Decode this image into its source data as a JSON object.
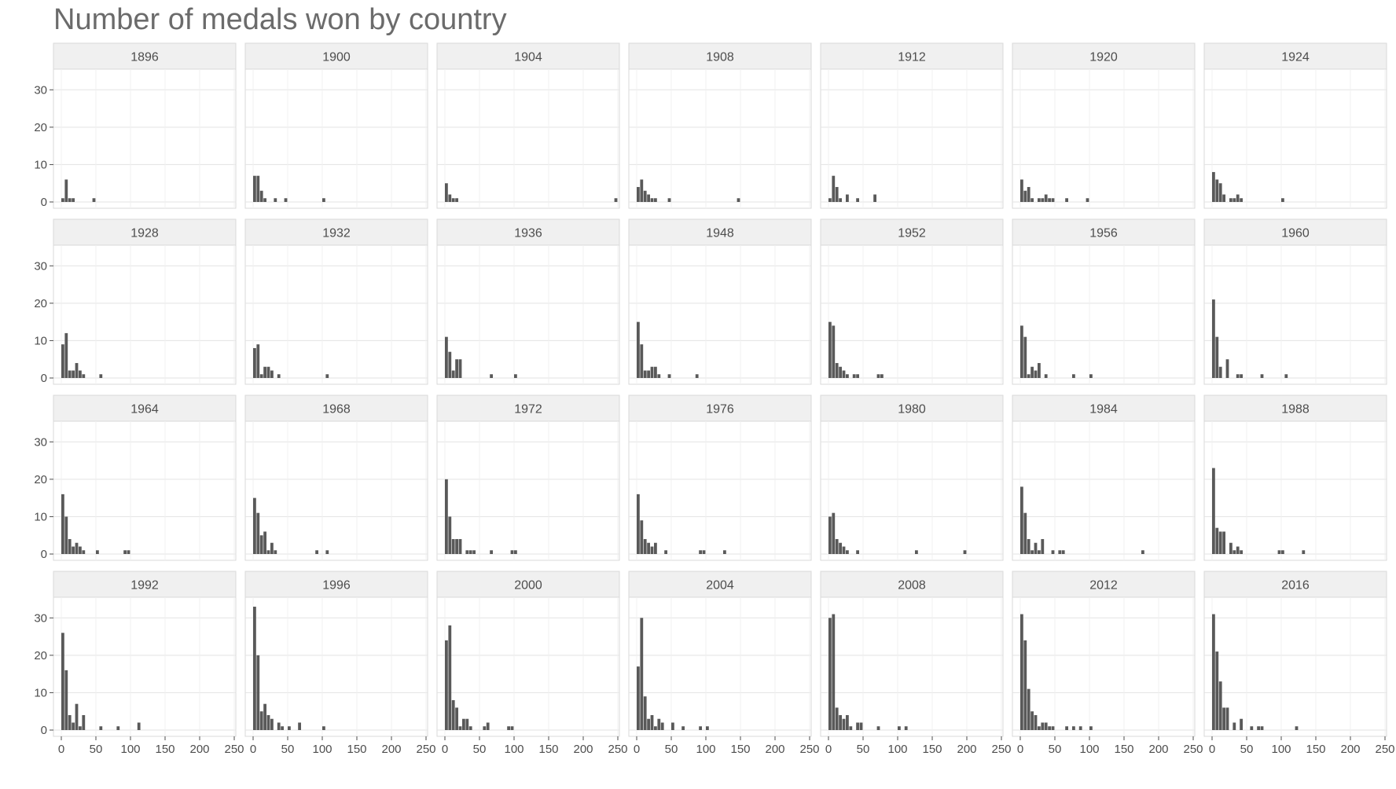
{
  "chart_data": {
    "type": "bar",
    "subtype": "faceted-histogram",
    "title": "Number of medals won by country",
    "xlabel": "",
    "ylabel": "",
    "xlim": [
      0,
      250
    ],
    "ylim": [
      0,
      33
    ],
    "x_ticks": [
      0,
      50,
      100,
      150,
      200,
      250
    ],
    "y_ticks": [
      0,
      10,
      20,
      30
    ],
    "bin_width": 5,
    "grid": true,
    "bar_color": "#595959",
    "strip_color": "#f0f0f0",
    "panels": [
      {
        "year": "1896",
        "bins": [
          [
            0,
            1
          ],
          [
            5,
            6
          ],
          [
            10,
            1
          ],
          [
            15,
            1
          ],
          [
            45,
            1
          ]
        ]
      },
      {
        "year": "1900",
        "bins": [
          [
            0,
            7
          ],
          [
            5,
            7
          ],
          [
            10,
            3
          ],
          [
            15,
            1
          ],
          [
            30,
            1
          ],
          [
            45,
            1
          ],
          [
            100,
            1
          ]
        ]
      },
      {
        "year": "1904",
        "bins": [
          [
            0,
            5
          ],
          [
            5,
            2
          ],
          [
            10,
            1
          ],
          [
            15,
            1
          ],
          [
            245,
            1
          ]
        ]
      },
      {
        "year": "1908",
        "bins": [
          [
            0,
            4
          ],
          [
            5,
            6
          ],
          [
            10,
            3
          ],
          [
            15,
            2
          ],
          [
            20,
            1
          ],
          [
            25,
            1
          ],
          [
            45,
            1
          ],
          [
            145,
            1
          ]
        ]
      },
      {
        "year": "1912",
        "bins": [
          [
            0,
            1
          ],
          [
            5,
            7
          ],
          [
            10,
            4
          ],
          [
            15,
            1
          ],
          [
            25,
            2
          ],
          [
            40,
            1
          ],
          [
            65,
            2
          ]
        ]
      },
      {
        "year": "1920",
        "bins": [
          [
            0,
            6
          ],
          [
            5,
            3
          ],
          [
            10,
            4
          ],
          [
            15,
            1
          ],
          [
            25,
            1
          ],
          [
            30,
            1
          ],
          [
            35,
            2
          ],
          [
            40,
            1
          ],
          [
            45,
            1
          ],
          [
            65,
            1
          ],
          [
            95,
            1
          ]
        ]
      },
      {
        "year": "1924",
        "bins": [
          [
            0,
            8
          ],
          [
            5,
            6
          ],
          [
            10,
            5
          ],
          [
            15,
            2
          ],
          [
            25,
            1
          ],
          [
            30,
            1
          ],
          [
            35,
            2
          ],
          [
            40,
            1
          ],
          [
            100,
            1
          ]
        ]
      },
      {
        "year": "1928",
        "bins": [
          [
            0,
            9
          ],
          [
            5,
            12
          ],
          [
            10,
            2
          ],
          [
            15,
            2
          ],
          [
            20,
            4
          ],
          [
            25,
            2
          ],
          [
            30,
            1
          ],
          [
            55,
            1
          ]
        ]
      },
      {
        "year": "1932",
        "bins": [
          [
            0,
            8
          ],
          [
            5,
            9
          ],
          [
            10,
            1
          ],
          [
            15,
            3
          ],
          [
            20,
            3
          ],
          [
            25,
            2
          ],
          [
            35,
            1
          ],
          [
            105,
            1
          ]
        ]
      },
      {
        "year": "1936",
        "bins": [
          [
            0,
            11
          ],
          [
            5,
            7
          ],
          [
            10,
            2
          ],
          [
            15,
            5
          ],
          [
            20,
            5
          ],
          [
            65,
            1
          ],
          [
            100,
            1
          ]
        ]
      },
      {
        "year": "1948",
        "bins": [
          [
            0,
            15
          ],
          [
            5,
            9
          ],
          [
            10,
            2
          ],
          [
            15,
            2
          ],
          [
            20,
            3
          ],
          [
            25,
            3
          ],
          [
            30,
            1
          ],
          [
            45,
            1
          ],
          [
            85,
            1
          ]
        ]
      },
      {
        "year": "1952",
        "bins": [
          [
            0,
            15
          ],
          [
            5,
            14
          ],
          [
            10,
            4
          ],
          [
            15,
            3
          ],
          [
            20,
            2
          ],
          [
            25,
            1
          ],
          [
            35,
            1
          ],
          [
            40,
            1
          ],
          [
            70,
            1
          ],
          [
            75,
            1
          ]
        ]
      },
      {
        "year": "1956",
        "bins": [
          [
            0,
            14
          ],
          [
            5,
            11
          ],
          [
            10,
            1
          ],
          [
            15,
            3
          ],
          [
            20,
            2
          ],
          [
            25,
            4
          ],
          [
            35,
            1
          ],
          [
            75,
            1
          ],
          [
            100,
            1
          ]
        ]
      },
      {
        "year": "1960",
        "bins": [
          [
            0,
            21
          ],
          [
            5,
            11
          ],
          [
            10,
            3
          ],
          [
            20,
            5
          ],
          [
            35,
            1
          ],
          [
            40,
            1
          ],
          [
            70,
            1
          ],
          [
            105,
            1
          ]
        ]
      },
      {
        "year": "1964",
        "bins": [
          [
            0,
            16
          ],
          [
            5,
            10
          ],
          [
            10,
            4
          ],
          [
            15,
            2
          ],
          [
            20,
            3
          ],
          [
            25,
            2
          ],
          [
            30,
            1
          ],
          [
            50,
            1
          ],
          [
            90,
            1
          ],
          [
            95,
            1
          ]
        ]
      },
      {
        "year": "1968",
        "bins": [
          [
            0,
            15
          ],
          [
            5,
            11
          ],
          [
            10,
            5
          ],
          [
            15,
            6
          ],
          [
            20,
            1
          ],
          [
            25,
            3
          ],
          [
            30,
            1
          ],
          [
            90,
            1
          ],
          [
            105,
            1
          ]
        ]
      },
      {
        "year": "1972",
        "bins": [
          [
            0,
            20
          ],
          [
            5,
            10
          ],
          [
            10,
            4
          ],
          [
            15,
            4
          ],
          [
            20,
            4
          ],
          [
            30,
            1
          ],
          [
            35,
            1
          ],
          [
            40,
            1
          ],
          [
            65,
            1
          ],
          [
            95,
            1
          ],
          [
            100,
            1
          ]
        ]
      },
      {
        "year": "1976",
        "bins": [
          [
            0,
            16
          ],
          [
            5,
            9
          ],
          [
            10,
            4
          ],
          [
            15,
            3
          ],
          [
            20,
            2
          ],
          [
            25,
            3
          ],
          [
            40,
            1
          ],
          [
            90,
            1
          ],
          [
            95,
            1
          ],
          [
            125,
            1
          ]
        ]
      },
      {
        "year": "1980",
        "bins": [
          [
            0,
            10
          ],
          [
            5,
            11
          ],
          [
            10,
            4
          ],
          [
            15,
            3
          ],
          [
            20,
            2
          ],
          [
            25,
            1
          ],
          [
            40,
            1
          ],
          [
            125,
            1
          ],
          [
            195,
            1
          ]
        ]
      },
      {
        "year": "1984",
        "bins": [
          [
            0,
            18
          ],
          [
            5,
            11
          ],
          [
            10,
            4
          ],
          [
            15,
            1
          ],
          [
            20,
            3
          ],
          [
            25,
            1
          ],
          [
            30,
            4
          ],
          [
            45,
            1
          ],
          [
            55,
            1
          ],
          [
            60,
            1
          ],
          [
            175,
            1
          ]
        ]
      },
      {
        "year": "1988",
        "bins": [
          [
            0,
            23
          ],
          [
            5,
            7
          ],
          [
            10,
            6
          ],
          [
            15,
            6
          ],
          [
            25,
            3
          ],
          [
            30,
            1
          ],
          [
            35,
            2
          ],
          [
            40,
            1
          ],
          [
            95,
            1
          ],
          [
            100,
            1
          ],
          [
            130,
            1
          ]
        ]
      },
      {
        "year": "1992",
        "bins": [
          [
            0,
            26
          ],
          [
            5,
            16
          ],
          [
            10,
            4
          ],
          [
            15,
            2
          ],
          [
            20,
            7
          ],
          [
            25,
            1
          ],
          [
            30,
            4
          ],
          [
            55,
            1
          ],
          [
            80,
            1
          ],
          [
            110,
            2
          ]
        ]
      },
      {
        "year": "1996",
        "bins": [
          [
            0,
            33
          ],
          [
            5,
            20
          ],
          [
            10,
            5
          ],
          [
            15,
            7
          ],
          [
            20,
            4
          ],
          [
            25,
            3
          ],
          [
            35,
            2
          ],
          [
            40,
            1
          ],
          [
            50,
            1
          ],
          [
            65,
            2
          ],
          [
            100,
            1
          ]
        ]
      },
      {
        "year": "2000",
        "bins": [
          [
            0,
            24
          ],
          [
            5,
            28
          ],
          [
            10,
            8
          ],
          [
            15,
            6
          ],
          [
            20,
            1
          ],
          [
            25,
            3
          ],
          [
            30,
            3
          ],
          [
            35,
            1
          ],
          [
            55,
            1
          ],
          [
            60,
            2
          ],
          [
            90,
            1
          ],
          [
            95,
            1
          ]
        ]
      },
      {
        "year": "2004",
        "bins": [
          [
            0,
            17
          ],
          [
            5,
            30
          ],
          [
            10,
            9
          ],
          [
            15,
            3
          ],
          [
            20,
            4
          ],
          [
            25,
            1
          ],
          [
            30,
            3
          ],
          [
            35,
            2
          ],
          [
            50,
            2
          ],
          [
            65,
            1
          ],
          [
            90,
            1
          ],
          [
            100,
            1
          ]
        ]
      },
      {
        "year": "2008",
        "bins": [
          [
            0,
            30
          ],
          [
            5,
            31
          ],
          [
            10,
            6
          ],
          [
            15,
            4
          ],
          [
            20,
            3
          ],
          [
            25,
            4
          ],
          [
            30,
            1
          ],
          [
            40,
            2
          ],
          [
            45,
            2
          ],
          [
            70,
            1
          ],
          [
            100,
            1
          ],
          [
            110,
            1
          ]
        ]
      },
      {
        "year": "2012",
        "bins": [
          [
            0,
            31
          ],
          [
            5,
            24
          ],
          [
            10,
            11
          ],
          [
            15,
            5
          ],
          [
            20,
            4
          ],
          [
            25,
            1
          ],
          [
            30,
            2
          ],
          [
            35,
            2
          ],
          [
            40,
            1
          ],
          [
            45,
            1
          ],
          [
            65,
            1
          ],
          [
            75,
            1
          ],
          [
            85,
            1
          ],
          [
            100,
            1
          ]
        ]
      },
      {
        "year": "2016",
        "bins": [
          [
            0,
            31
          ],
          [
            5,
            21
          ],
          [
            10,
            13
          ],
          [
            15,
            6
          ],
          [
            20,
            6
          ],
          [
            30,
            2
          ],
          [
            40,
            3
          ],
          [
            55,
            1
          ],
          [
            65,
            1
          ],
          [
            70,
            1
          ],
          [
            120,
            1
          ]
        ]
      }
    ]
  }
}
